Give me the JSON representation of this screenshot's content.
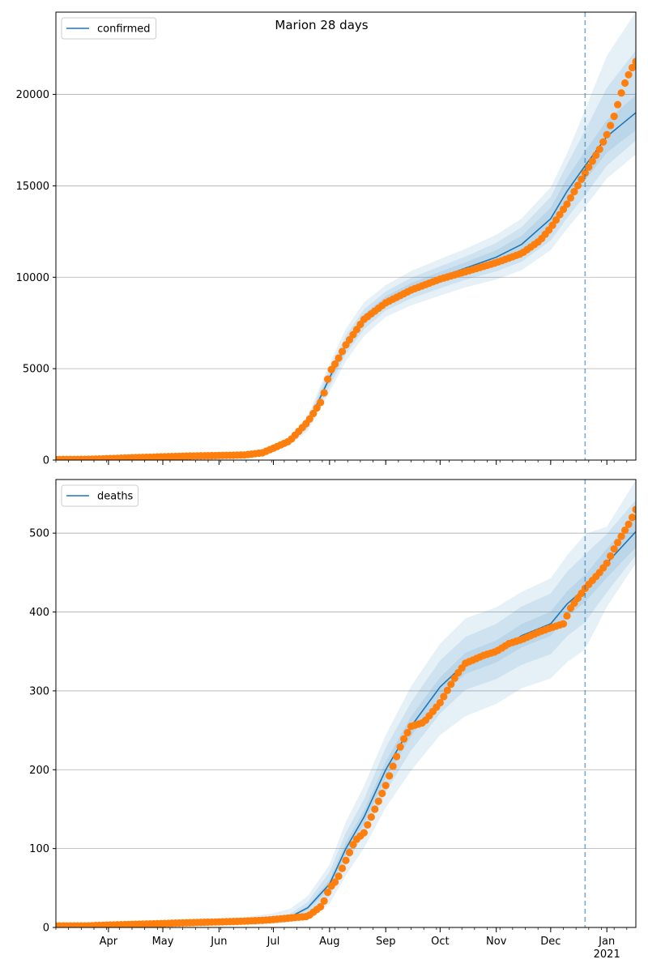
{
  "figure_title": "Marion 28 days",
  "colors": {
    "model": "#1f77b4",
    "observed": "#ff7f0e",
    "grid": "#b0b0b0",
    "band": "#1f77b4"
  },
  "chart_data": [
    {
      "type": "line",
      "title": "Marion 28 days",
      "legend": "confirmed",
      "legend_position": "top-left",
      "grid": "y",
      "xlabel": "",
      "ylabel": "",
      "ylim": [
        0,
        24500
      ],
      "yticks": [
        0,
        5000,
        10000,
        15000,
        20000
      ],
      "xlim": [
        "2020-03-03",
        "2021-01-17"
      ],
      "xticks": [
        {
          "date": "2020-04-01",
          "label": "Apr"
        },
        {
          "date": "2020-05-01",
          "label": "May"
        },
        {
          "date": "2020-06-01",
          "label": "Jun"
        },
        {
          "date": "2020-07-01",
          "label": "Jul"
        },
        {
          "date": "2020-08-01",
          "label": "Aug"
        },
        {
          "date": "2020-09-01",
          "label": "Sep"
        },
        {
          "date": "2020-10-01",
          "label": "Oct"
        },
        {
          "date": "2020-11-01",
          "label": "Nov"
        },
        {
          "date": "2020-12-01",
          "label": "Dec"
        },
        {
          "date": "2021-01-01",
          "label": "Jan"
        }
      ],
      "xtick_sublabel": "2021",
      "forecast_start": "2020-12-20",
      "model": {
        "name": "confirmed",
        "x": [
          "2020-03-03",
          "2020-04-01",
          "2020-05-01",
          "2020-06-01",
          "2020-06-15",
          "2020-07-01",
          "2020-07-10",
          "2020-07-20",
          "2020-08-01",
          "2020-08-10",
          "2020-08-20",
          "2020-09-01",
          "2020-09-15",
          "2020-10-01",
          "2020-10-15",
          "2020-11-01",
          "2020-11-15",
          "2020-12-01",
          "2020-12-10",
          "2020-12-20",
          "2021-01-01",
          "2021-01-17"
        ],
        "y": [
          50,
          70,
          180,
          260,
          310,
          600,
          1000,
          2000,
          4500,
          6300,
          7700,
          8700,
          9400,
          10000,
          10500,
          11100,
          11800,
          13200,
          14700,
          16100,
          17700,
          19000
        ],
        "bands": [
          {
            "lo_frac": [
              0.975,
              0.97,
              0.97,
              0.96,
              0.96,
              0.95,
              0.94,
              0.94,
              0.95,
              0.96,
              0.965,
              0.97,
              0.97,
              0.97,
              0.97,
              0.965,
              0.96,
              0.955,
              0.95,
              0.95,
              0.95,
              0.95
            ],
            "hi_frac": [
              1.025,
              1.03,
              1.03,
              1.04,
              1.04,
              1.05,
              1.06,
              1.06,
              1.05,
              1.04,
              1.035,
              1.03,
              1.03,
              1.03,
              1.03,
              1.035,
              1.04,
              1.045,
              1.05,
              1.05,
              1.05,
              1.05
            ]
          },
          {
            "lo_frac": [
              0.95,
              0.94,
              0.94,
              0.92,
              0.92,
              0.9,
              0.88,
              0.87,
              0.89,
              0.92,
              0.93,
              0.94,
              0.94,
              0.94,
              0.94,
              0.93,
              0.92,
              0.91,
              0.9,
              0.9,
              0.91,
              0.92
            ],
            "hi_frac": [
              1.05,
              1.06,
              1.06,
              1.08,
              1.08,
              1.1,
              1.12,
              1.13,
              1.11,
              1.08,
              1.07,
              1.06,
              1.06,
              1.06,
              1.06,
              1.07,
              1.08,
              1.09,
              1.1,
              1.12,
              1.15,
              1.18
            ],
            "forecast_hi_frac": [
              1.12,
              1.15,
              1.27
            ]
          },
          {
            "lo_frac": [
              0.92,
              0.9,
              0.9,
              0.88,
              0.88,
              0.85,
              0.82,
              0.8,
              0.83,
              0.86,
              0.88,
              0.9,
              0.9,
              0.9,
              0.9,
              0.89,
              0.88,
              0.87,
              0.86,
              0.86,
              0.87,
              0.88
            ],
            "hi_frac": [
              1.08,
              1.1,
              1.1,
              1.12,
              1.12,
              1.15,
              1.18,
              1.2,
              1.17,
              1.14,
              1.12,
              1.1,
              1.1,
              1.1,
              1.1,
              1.11,
              1.12,
              1.13,
              1.14,
              1.19,
              1.25,
              1.29
            ]
          }
        ]
      },
      "observed": {
        "x": [
          "2020-03-03",
          "2020-03-20",
          "2020-04-01",
          "2020-04-15",
          "2020-05-01",
          "2020-05-15",
          "2020-06-01",
          "2020-06-15",
          "2020-06-25",
          "2020-07-01",
          "2020-07-10",
          "2020-07-20",
          "2020-07-28",
          "2020-08-01",
          "2020-08-05",
          "2020-08-10",
          "2020-08-15",
          "2020-08-20",
          "2020-09-01",
          "2020-09-15",
          "2020-10-01",
          "2020-10-15",
          "2020-11-01",
          "2020-11-15",
          "2020-11-25",
          "2020-12-01",
          "2020-12-10",
          "2020-12-20",
          "2020-12-28",
          "2021-01-01",
          "2021-01-05",
          "2021-01-10",
          "2021-01-14",
          "2021-01-17"
        ],
        "y": [
          30,
          40,
          80,
          130,
          180,
          220,
          250,
          280,
          400,
          650,
          1050,
          2100,
          3300,
          4800,
          5400,
          6300,
          7000,
          7700,
          8600,
          9300,
          9900,
          10300,
          10800,
          11300,
          12000,
          12700,
          14000,
          15700,
          17000,
          17800,
          18800,
          20400,
          21300,
          21800
        ]
      }
    },
    {
      "type": "line",
      "title": "",
      "legend": "deaths",
      "legend_position": "top-left",
      "grid": "y",
      "xlabel": "",
      "ylabel": "",
      "ylim": [
        0,
        568
      ],
      "yticks": [
        0,
        100,
        200,
        300,
        400,
        500
      ],
      "xlim": [
        "2020-03-03",
        "2021-01-17"
      ],
      "xticks": [
        {
          "date": "2020-04-01",
          "label": "Apr"
        },
        {
          "date": "2020-05-01",
          "label": "May"
        },
        {
          "date": "2020-06-01",
          "label": "Jun"
        },
        {
          "date": "2020-07-01",
          "label": "Jul"
        },
        {
          "date": "2020-08-01",
          "label": "Aug"
        },
        {
          "date": "2020-09-01",
          "label": "Sep"
        },
        {
          "date": "2020-10-01",
          "label": "Oct"
        },
        {
          "date": "2020-11-01",
          "label": "Nov"
        },
        {
          "date": "2020-12-01",
          "label": "Dec"
        },
        {
          "date": "2021-01-01",
          "label": "Jan"
        }
      ],
      "xtick_sublabel": "2021",
      "forecast_start": "2020-12-20",
      "model": {
        "name": "deaths",
        "x": [
          "2020-03-03",
          "2020-04-01",
          "2020-05-01",
          "2020-06-01",
          "2020-06-15",
          "2020-07-01",
          "2020-07-10",
          "2020-07-20",
          "2020-08-01",
          "2020-08-10",
          "2020-08-20",
          "2020-09-01",
          "2020-09-15",
          "2020-10-01",
          "2020-10-15",
          "2020-11-01",
          "2020-11-15",
          "2020-12-01",
          "2020-12-10",
          "2020-12-20",
          "2021-01-01",
          "2021-01-17"
        ],
        "y": [
          2,
          3,
          4,
          6,
          8,
          10,
          13,
          25,
          55,
          100,
          140,
          200,
          255,
          305,
          335,
          350,
          370,
          385,
          410,
          430,
          462,
          502
        ],
        "bands": [
          {
            "lo_frac": [
              0.9,
              0.9,
              0.9,
              0.9,
              0.9,
              0.9,
              0.9,
              0.9,
              0.9,
              0.92,
              0.94,
              0.95,
              0.95,
              0.96,
              0.96,
              0.96,
              0.96,
              0.96,
              0.96,
              0.96,
              0.96,
              0.96
            ],
            "hi_frac": [
              1.1,
              1.1,
              1.1,
              1.1,
              1.1,
              1.1,
              1.1,
              1.1,
              1.1,
              1.08,
              1.06,
              1.05,
              1.05,
              1.04,
              1.04,
              1.04,
              1.04,
              1.04,
              1.04,
              1.04,
              1.04,
              1.04
            ]
          },
          {
            "lo_frac": [
              0.7,
              0.7,
              0.7,
              0.7,
              0.7,
              0.7,
              0.7,
              0.7,
              0.72,
              0.8,
              0.84,
              0.86,
              0.88,
              0.89,
              0.9,
              0.9,
              0.9,
              0.9,
              0.9,
              0.9,
              0.92,
              0.94
            ],
            "hi_frac": [
              1.3,
              1.3,
              1.3,
              1.3,
              1.3,
              1.3,
              1.3,
              1.3,
              1.28,
              1.2,
              1.16,
              1.14,
              1.12,
              1.11,
              1.1,
              1.1,
              1.1,
              1.1,
              1.1,
              1.1,
              1.08,
              1.08
            ]
          },
          {
            "lo_frac": [
              0.5,
              0.5,
              0.5,
              0.5,
              0.5,
              0.5,
              0.5,
              0.5,
              0.55,
              0.66,
              0.72,
              0.76,
              0.78,
              0.8,
              0.8,
              0.81,
              0.82,
              0.82,
              0.82,
              0.82,
              0.88,
              0.92
            ],
            "hi_frac": [
              1.5,
              1.5,
              1.5,
              1.6,
              1.6,
              1.8,
              1.8,
              1.6,
              1.45,
              1.34,
              1.28,
              1.22,
              1.2,
              1.18,
              1.17,
              1.16,
              1.15,
              1.15,
              1.15,
              1.16,
              1.1,
              1.13
            ]
          }
        ]
      },
      "observed": {
        "x": [
          "2020-03-03",
          "2020-03-20",
          "2020-04-01",
          "2020-04-15",
          "2020-05-01",
          "2020-05-15",
          "2020-06-01",
          "2020-06-15",
          "2020-06-25",
          "2020-07-01",
          "2020-07-10",
          "2020-07-20",
          "2020-07-28",
          "2020-08-01",
          "2020-08-05",
          "2020-08-10",
          "2020-08-15",
          "2020-08-20",
          "2020-08-25",
          "2020-09-01",
          "2020-09-10",
          "2020-09-15",
          "2020-09-22",
          "2020-10-01",
          "2020-10-10",
          "2020-10-15",
          "2020-10-25",
          "2020-11-01",
          "2020-11-08",
          "2020-11-15",
          "2020-11-25",
          "2020-12-01",
          "2020-12-08",
          "2020-12-12",
          "2020-12-20",
          "2020-12-28",
          "2021-01-01",
          "2021-01-05",
          "2021-01-10",
          "2021-01-14",
          "2021-01-17"
        ],
        "y": [
          2,
          2,
          3,
          4,
          5,
          6,
          7,
          8,
          9,
          10,
          12,
          14,
          28,
          50,
          60,
          85,
          110,
          120,
          145,
          180,
          235,
          255,
          260,
          285,
          320,
          335,
          345,
          350,
          360,
          365,
          375,
          380,
          385,
          405,
          430,
          450,
          462,
          480,
          500,
          515,
          530
        ]
      }
    }
  ]
}
